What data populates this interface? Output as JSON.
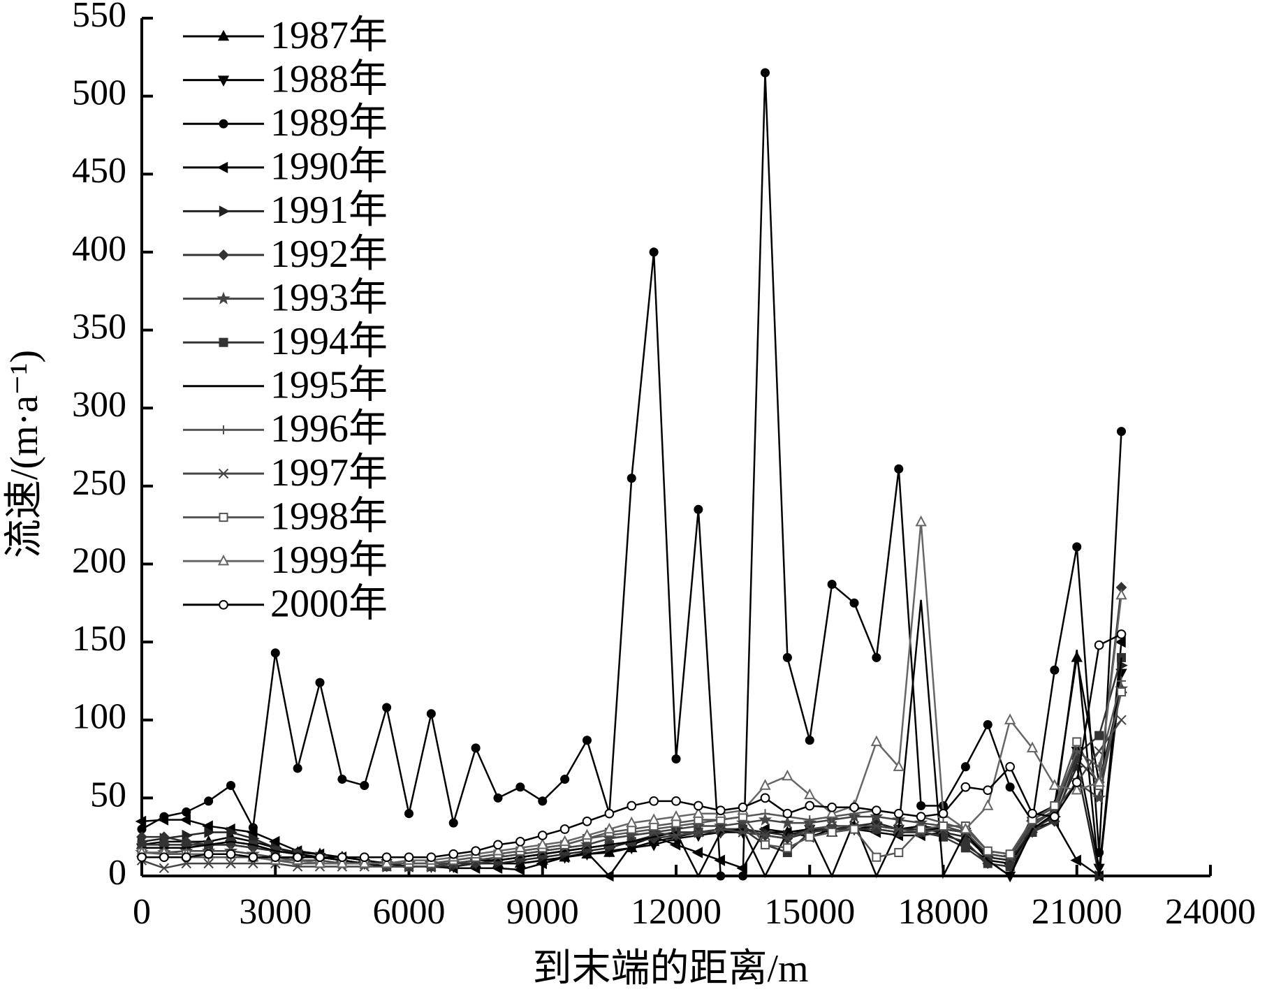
{
  "chart_data": {
    "type": "line",
    "x_label": "到末端的距离/m",
    "y_label": "流速/(m·a⁻¹)",
    "x": [
      0,
      500,
      1000,
      1500,
      2000,
      2500,
      3000,
      3500,
      4000,
      4500,
      5000,
      5500,
      6000,
      6500,
      7000,
      7500,
      8000,
      8500,
      9000,
      9500,
      10000,
      10500,
      11000,
      11500,
      12000,
      12500,
      13000,
      13500,
      14000,
      14500,
      15000,
      15500,
      16000,
      16500,
      17000,
      17500,
      18000,
      18500,
      19000,
      19500,
      20000,
      20500,
      21000,
      21500,
      22000
    ],
    "xlim": [
      0,
      24000
    ],
    "xticks": [
      0,
      3000,
      6000,
      9000,
      12000,
      15000,
      18000,
      21000,
      24000
    ],
    "ylim": [
      0,
      550
    ],
    "yticks": [
      0,
      50,
      100,
      150,
      200,
      250,
      300,
      350,
      400,
      450,
      500,
      550
    ],
    "legend": "upper left",
    "series": [
      {
        "name": "1987年",
        "color": "#000000",
        "marker": "triangle-up",
        "values": [
          20,
          22,
          22,
          22,
          25,
          22,
          18,
          15,
          14,
          12,
          10,
          8,
          8,
          8,
          8,
          8,
          8,
          8,
          10,
          12,
          14,
          15,
          18,
          22,
          25,
          28,
          30,
          30,
          28,
          28,
          30,
          28,
          30,
          32,
          30,
          32,
          30,
          28,
          12,
          10,
          38,
          45,
          140,
          60,
          120
        ]
      },
      {
        "name": "1988年",
        "color": "#000000",
        "marker": "triangle-down",
        "values": [
          18,
          18,
          18,
          20,
          20,
          18,
          16,
          14,
          12,
          10,
          8,
          8,
          6,
          6,
          6,
          8,
          8,
          8,
          10,
          12,
          14,
          16,
          18,
          20,
          24,
          26,
          28,
          28,
          26,
          24,
          30,
          30,
          30,
          32,
          30,
          30,
          30,
          28,
          10,
          0,
          35,
          40,
          80,
          5,
          130
        ]
      },
      {
        "name": "1989年",
        "color": "#000000",
        "marker": "circle",
        "values": [
          30,
          38,
          41,
          48,
          58,
          31,
          143,
          69,
          124,
          62,
          58,
          108,
          40,
          104,
          34,
          82,
          50,
          57,
          48,
          62,
          87,
          40,
          255,
          400,
          75,
          235,
          0,
          0,
          515,
          140,
          87,
          187,
          175,
          140,
          261,
          45,
          45,
          70,
          97,
          57,
          35,
          132,
          211,
          15,
          285
        ]
      },
      {
        "name": "1990年",
        "color": "#000000",
        "marker": "triangle-left",
        "values": [
          35,
          36,
          36,
          32,
          30,
          28,
          22,
          16,
          14,
          12,
          10,
          8,
          6,
          6,
          5,
          5,
          5,
          4,
          8,
          12,
          15,
          0,
          20,
          25,
          20,
          15,
          10,
          5,
          30,
          28,
          25,
          30,
          30,
          28,
          26,
          26,
          28,
          20,
          10,
          8,
          30,
          35,
          10,
          0,
          150
        ]
      },
      {
        "name": "1991年",
        "color": "#222222",
        "marker": "triangle-right",
        "values": [
          22,
          24,
          26,
          28,
          28,
          24,
          18,
          14,
          12,
          10,
          8,
          6,
          6,
          6,
          6,
          8,
          8,
          10,
          12,
          14,
          16,
          18,
          22,
          26,
          28,
          28,
          30,
          30,
          28,
          26,
          30,
          30,
          32,
          34,
          30,
          30,
          28,
          25,
          12,
          10,
          30,
          38,
          70,
          0,
          135
        ]
      },
      {
        "name": "1992年",
        "color": "#333333",
        "marker": "diamond",
        "values": [
          25,
          25,
          22,
          20,
          20,
          18,
          16,
          14,
          12,
          10,
          8,
          6,
          6,
          6,
          8,
          8,
          10,
          12,
          14,
          16,
          18,
          20,
          22,
          24,
          26,
          28,
          28,
          30,
          26,
          24,
          28,
          30,
          30,
          30,
          28,
          28,
          26,
          22,
          8,
          6,
          28,
          35,
          75,
          60,
          185
        ]
      },
      {
        "name": "1993年",
        "color": "#444444",
        "marker": "star",
        "values": [
          15,
          15,
          16,
          16,
          16,
          14,
          12,
          10,
          10,
          8,
          8,
          8,
          8,
          8,
          8,
          10,
          12,
          14,
          16,
          18,
          20,
          24,
          26,
          28,
          30,
          32,
          32,
          34,
          36,
          34,
          34,
          36,
          38,
          38,
          36,
          34,
          32,
          28,
          14,
          12,
          34,
          42,
          60,
          50,
          120
        ]
      },
      {
        "name": "1994年",
        "color": "#333333",
        "marker": "square",
        "values": [
          20,
          20,
          20,
          20,
          22,
          20,
          16,
          14,
          12,
          10,
          8,
          6,
          6,
          6,
          8,
          10,
          10,
          12,
          14,
          16,
          18,
          20,
          22,
          26,
          28,
          28,
          30,
          30,
          20,
          15,
          28,
          30,
          30,
          30,
          28,
          28,
          25,
          18,
          8,
          6,
          28,
          40,
          78,
          90,
          140
        ]
      },
      {
        "name": "1995年",
        "color": "#000000",
        "marker": "none",
        "values": [
          18,
          18,
          18,
          20,
          22,
          20,
          16,
          14,
          12,
          10,
          8,
          6,
          6,
          6,
          8,
          10,
          10,
          12,
          14,
          16,
          18,
          20,
          22,
          25,
          28,
          0,
          28,
          30,
          0,
          28,
          30,
          0,
          35,
          0,
          30,
          177,
          0,
          28,
          10,
          0,
          30,
          40,
          145,
          0,
          140
        ]
      },
      {
        "name": "1996年",
        "color": "#555555",
        "marker": "plus",
        "values": [
          12,
          12,
          12,
          12,
          12,
          12,
          10,
          8,
          8,
          8,
          8,
          8,
          8,
          8,
          10,
          12,
          14,
          16,
          18,
          20,
          24,
          26,
          28,
          30,
          32,
          34,
          36,
          38,
          40,
          38,
          36,
          38,
          40,
          42,
          40,
          38,
          34,
          30,
          16,
          14,
          36,
          44,
          80,
          70,
          125
        ]
      },
      {
        "name": "1997年",
        "color": "#444444",
        "marker": "cross",
        "values": [
          10,
          5,
          8,
          8,
          8,
          8,
          8,
          6,
          6,
          6,
          6,
          6,
          6,
          6,
          8,
          10,
          12,
          14,
          16,
          18,
          20,
          24,
          26,
          28,
          26,
          28,
          30,
          28,
          26,
          24,
          30,
          32,
          32,
          32,
          30,
          28,
          30,
          28,
          14,
          12,
          32,
          42,
          60,
          80,
          100
        ]
      },
      {
        "name": "1998年",
        "color": "#555555",
        "marker": "square-open",
        "values": [
          15,
          14,
          14,
          14,
          14,
          12,
          10,
          10,
          8,
          8,
          8,
          8,
          8,
          8,
          10,
          12,
          14,
          16,
          18,
          20,
          24,
          28,
          30,
          32,
          34,
          36,
          36,
          38,
          20,
          18,
          25,
          28,
          30,
          12,
          15,
          30,
          32,
          32,
          16,
          14,
          36,
          45,
          86,
          58,
          118
        ]
      },
      {
        "name": "1999年",
        "color": "#666666",
        "marker": "triangle-open",
        "values": [
          15,
          15,
          14,
          14,
          14,
          12,
          10,
          10,
          8,
          8,
          8,
          8,
          10,
          10,
          12,
          14,
          16,
          18,
          20,
          22,
          26,
          30,
          34,
          36,
          38,
          40,
          40,
          42,
          58,
          64,
          52,
          40,
          45,
          86,
          70,
          227,
          40,
          30,
          45,
          100,
          82,
          58,
          55,
          60,
          180
        ]
      },
      {
        "name": "2000年",
        "color": "#000000",
        "marker": "circle-open",
        "values": [
          12,
          12,
          12,
          14,
          14,
          12,
          12,
          12,
          12,
          12,
          12,
          12,
          12,
          12,
          14,
          16,
          20,
          22,
          26,
          30,
          35,
          40,
          45,
          48,
          48,
          45,
          42,
          44,
          50,
          40,
          45,
          44,
          44,
          42,
          40,
          38,
          40,
          57,
          55,
          70,
          40,
          38,
          60,
          148,
          155
        ]
      }
    ]
  }
}
